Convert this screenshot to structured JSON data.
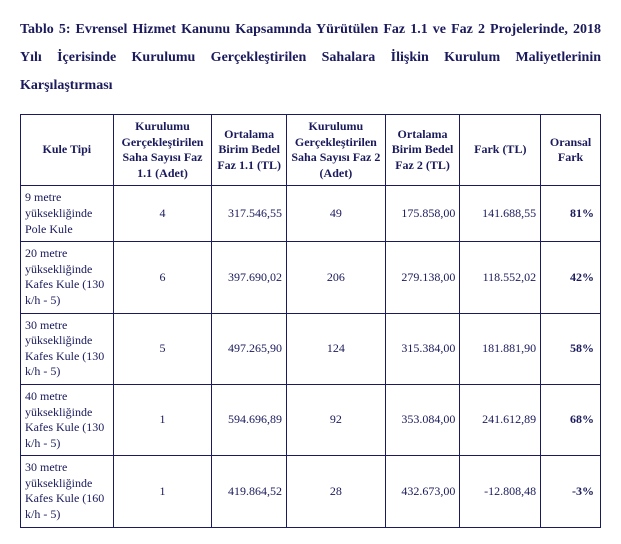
{
  "title_text": "Tablo 5: Evrensel Hizmet Kanunu Kapsamında Yürütülen Faz 1.1 ve Faz 2 Projelerinde, 2018 Yılı İçerisinde Kurulumu Gerçekleştirilen Sahalara İlişkin Kurulum Maliyetlerinin",
  "title_last": "Karşılaştırması",
  "table": {
    "headers": {
      "c1": "Kule Tipi",
      "c2": "Kurulumu Gerçekleştirilen Saha Sayısı Faz 1.1 (Adet)",
      "c3": "Ortalama Birim Bedel Faz 1.1 (TL)",
      "c4": "Kurulumu Gerçekleştirilen Saha Sayısı Faz 2 (Adet)",
      "c5": "Ortalama Birim Bedel Faz 2 (TL)",
      "c6": "Fark (TL)",
      "c7": "Oransal Fark"
    },
    "rows": [
      {
        "c1": "9 metre yüksekliğinde Pole Kule",
        "c2": "4",
        "c3": "317.546,55",
        "c4": "49",
        "c5": "175.858,00",
        "c6": "141.688,55",
        "c7": "81%"
      },
      {
        "c1": "20 metre yüksekliğinde Kafes Kule (130 k/h - 5)",
        "c2": "6",
        "c3": "397.690,02",
        "c4": "206",
        "c5": "279.138,00",
        "c6": "118.552,02",
        "c7": "42%"
      },
      {
        "c1": "30 metre yüksekliğinde Kafes Kule (130 k/h - 5)",
        "c2": "5",
        "c3": "497.265,90",
        "c4": "124",
        "c5": "315.384,00",
        "c6": "181.881,90",
        "c7": "58%"
      },
      {
        "c1": "40 metre yüksekliğinde Kafes Kule (130 k/h - 5)",
        "c2": "1",
        "c3": "594.696,89",
        "c4": "92",
        "c5": "353.084,00",
        "c6": "241.612,89",
        "c7": "68%"
      },
      {
        "c1": "30 metre yüksekliğinde Kafes Kule (160 k/h - 5)",
        "c2": "1",
        "c3": "419.864,52",
        "c4": "28",
        "c5": "432.673,00",
        "c6": "-12.808,48",
        "c7": "-3%"
      }
    ]
  }
}
